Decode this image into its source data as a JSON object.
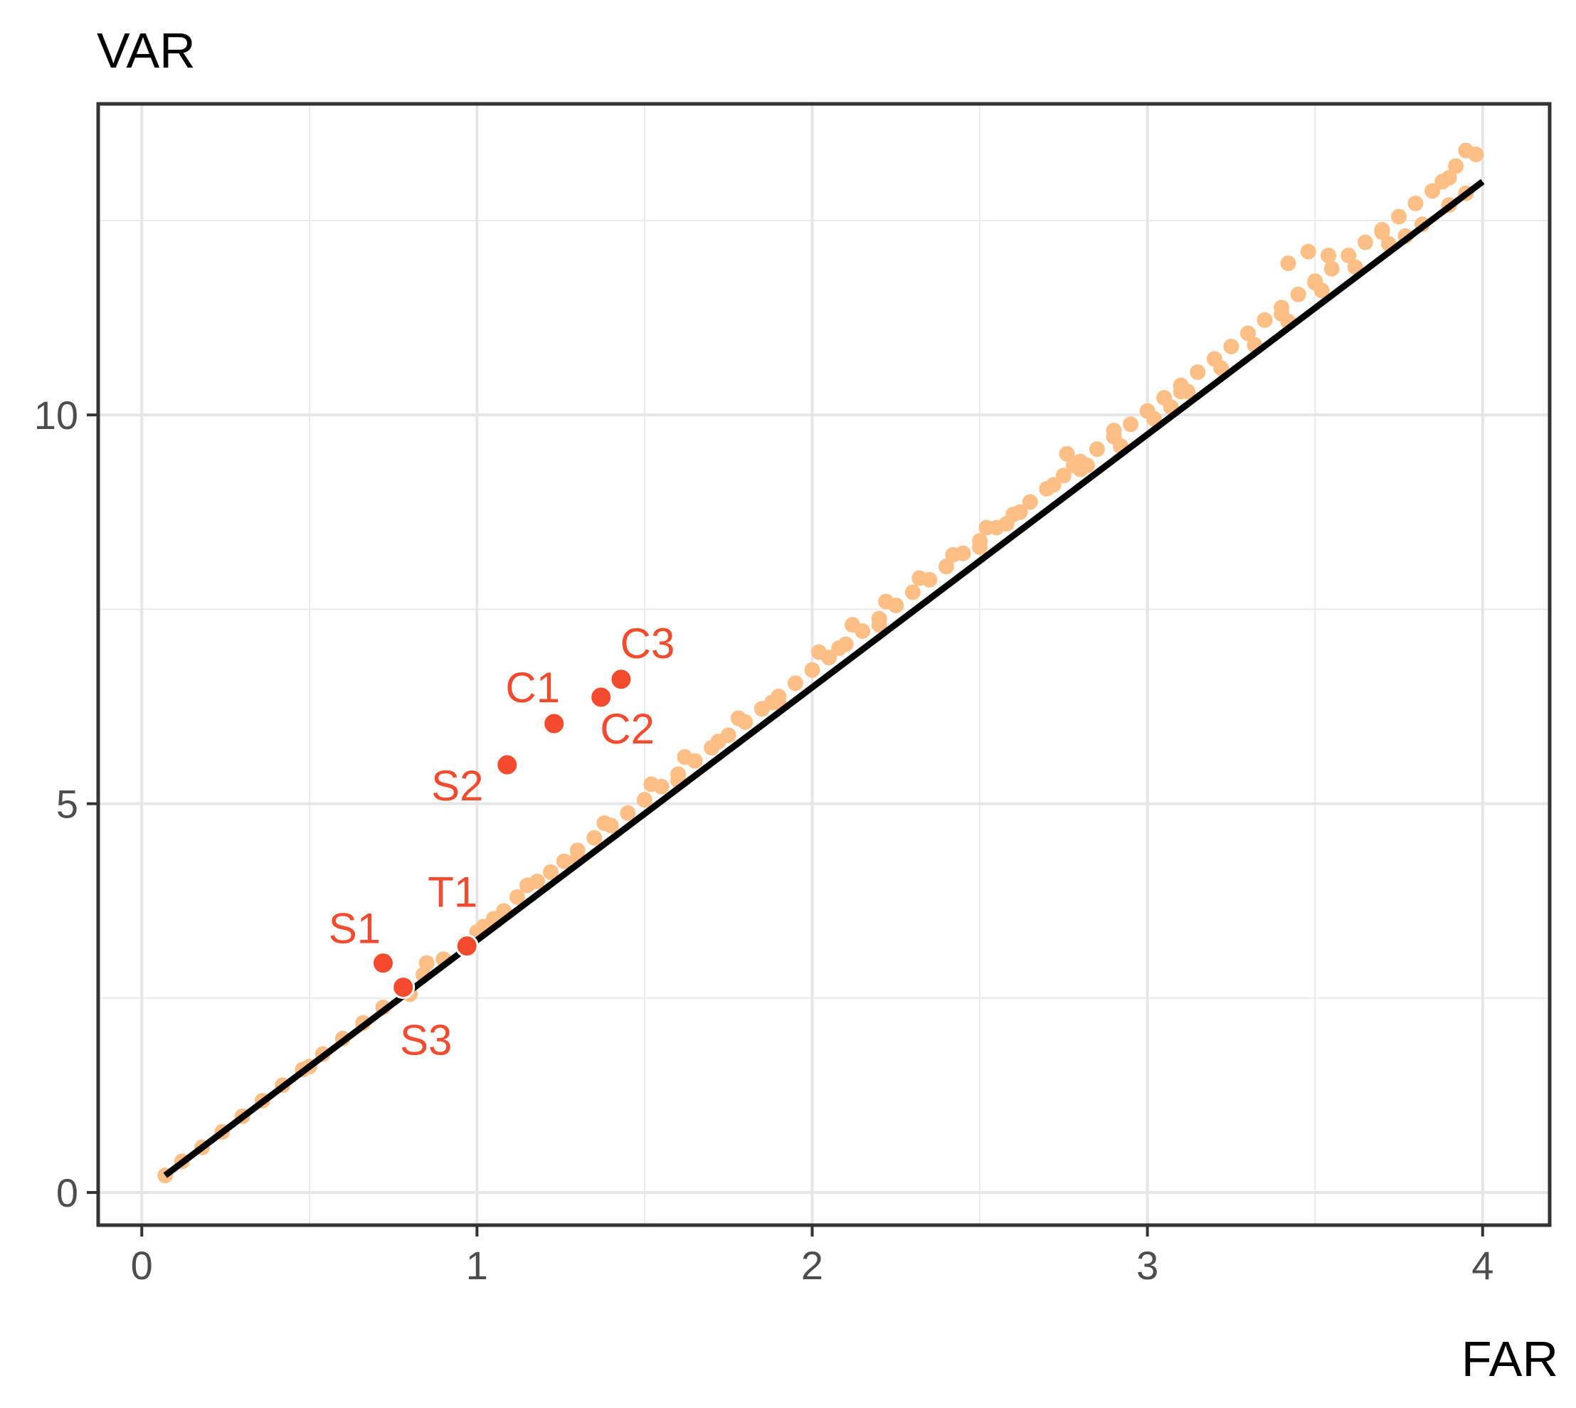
{
  "chart_data": {
    "type": "scatter",
    "title": "",
    "xlabel": "FAR",
    "ylabel": "VAR",
    "xlim": [
      -0.13,
      4.2
    ],
    "ylim": [
      -0.42,
      14.0
    ],
    "x_ticks": [
      0,
      1,
      2,
      3,
      4
    ],
    "y_ticks": [
      0,
      5,
      10
    ],
    "x_tick_labels": [
      "0",
      "1",
      "2",
      "3",
      "4"
    ],
    "y_tick_labels": [
      "0",
      "5",
      "10"
    ],
    "grid": true,
    "legend": "none",
    "colors": {
      "background_points": "#fdbf86",
      "highlight_points": "#f44a2e",
      "fit_line": "#000000",
      "label_text": "#f44a2e"
    },
    "fit_line": {
      "x": [
        0.07,
        4.0
      ],
      "y": [
        0.22,
        13.0
      ]
    },
    "series": [
      {
        "role": "background",
        "x": [
          0.07,
          0.12,
          0.18,
          0.24,
          0.3,
          0.36,
          0.42,
          0.48,
          0.54,
          0.6,
          0.66,
          0.72,
          0.78,
          0.84,
          0.9,
          0.96,
          1.02,
          1.05,
          1.08,
          1.12,
          1.18,
          1.22,
          1.26,
          1.3,
          1.35,
          1.4,
          1.45,
          1.5,
          1.55,
          1.6,
          1.65,
          1.7,
          1.72,
          1.75,
          1.8,
          1.85,
          1.9,
          1.95,
          2.0,
          2.05,
          2.08,
          2.1,
          2.15,
          2.2,
          2.25,
          2.3,
          2.35,
          2.4,
          2.45,
          2.5,
          2.55,
          2.6,
          2.65,
          2.7,
          2.75,
          2.78,
          2.8,
          2.85,
          2.9,
          2.95,
          3.0,
          3.05,
          3.1,
          3.15,
          3.2,
          3.25,
          3.3,
          3.35,
          3.4,
          3.45,
          3.5,
          3.55,
          3.6,
          3.65,
          3.7,
          3.75,
          3.8,
          3.85,
          3.88,
          3.9,
          3.92,
          3.95,
          3.98,
          0.5,
          0.85,
          1.15,
          1.38,
          1.52,
          1.62,
          1.78,
          1.88,
          2.02,
          2.12,
          2.22,
          2.32,
          2.42,
          2.52,
          2.62,
          2.72,
          2.82,
          2.92,
          3.02,
          3.12,
          3.22,
          3.32,
          3.42,
          3.52,
          3.62,
          3.72,
          3.82,
          0.8,
          1.0,
          1.3,
          1.6,
          1.9,
          2.2,
          2.5,
          2.8,
          3.1,
          3.4,
          3.7,
          3.9,
          3.95,
          2.9,
          3.42,
          3.48,
          3.5,
          2.76,
          2.58,
          3.07,
          3.54,
          3.77
        ],
        "y": [
          0.22,
          0.4,
          0.58,
          0.78,
          0.98,
          1.18,
          1.38,
          1.58,
          1.78,
          1.98,
          2.18,
          2.38,
          2.58,
          2.8,
          3.0,
          3.2,
          3.42,
          3.52,
          3.62,
          3.8,
          4.0,
          4.12,
          4.26,
          4.4,
          4.56,
          4.72,
          4.88,
          5.05,
          5.22,
          5.38,
          5.55,
          5.72,
          5.8,
          5.88,
          6.05,
          6.22,
          6.38,
          6.55,
          6.72,
          6.88,
          7.0,
          7.05,
          7.22,
          7.38,
          7.55,
          7.72,
          7.88,
          8.05,
          8.22,
          8.38,
          8.55,
          8.72,
          8.88,
          9.05,
          9.22,
          9.35,
          9.4,
          9.56,
          9.72,
          9.88,
          10.05,
          10.22,
          10.38,
          10.55,
          10.72,
          10.88,
          11.05,
          11.22,
          11.38,
          11.55,
          11.72,
          11.88,
          12.05,
          12.22,
          12.38,
          12.55,
          12.72,
          12.88,
          13.0,
          13.05,
          13.2,
          13.4,
          13.35,
          1.62,
          2.95,
          3.95,
          4.75,
          5.25,
          5.6,
          6.1,
          6.3,
          6.95,
          7.3,
          7.6,
          7.9,
          8.2,
          8.55,
          8.75,
          9.1,
          9.35,
          9.6,
          9.95,
          10.3,
          10.6,
          10.9,
          11.2,
          11.6,
          11.9,
          12.2,
          12.45,
          2.55,
          3.35,
          4.3,
          5.3,
          6.3,
          7.3,
          8.3,
          9.3,
          10.3,
          11.3,
          12.35,
          12.7,
          12.85,
          9.8,
          11.95,
          12.1,
          11.7,
          9.5,
          8.6,
          10.1,
          12.05,
          12.3
        ]
      },
      {
        "role": "highlight",
        "points": [
          {
            "label": "S1",
            "x": 0.72,
            "y": 2.95
          },
          {
            "label": "S3",
            "x": 0.78,
            "y": 2.64
          },
          {
            "label": "T1",
            "x": 0.97,
            "y": 3.17
          },
          {
            "label": "S2",
            "x": 1.09,
            "y": 5.5
          },
          {
            "label": "C1",
            "x": 1.23,
            "y": 6.03
          },
          {
            "label": "C2",
            "x": 1.37,
            "y": 6.37
          },
          {
            "label": "C3",
            "x": 1.43,
            "y": 6.6
          }
        ]
      }
    ]
  }
}
